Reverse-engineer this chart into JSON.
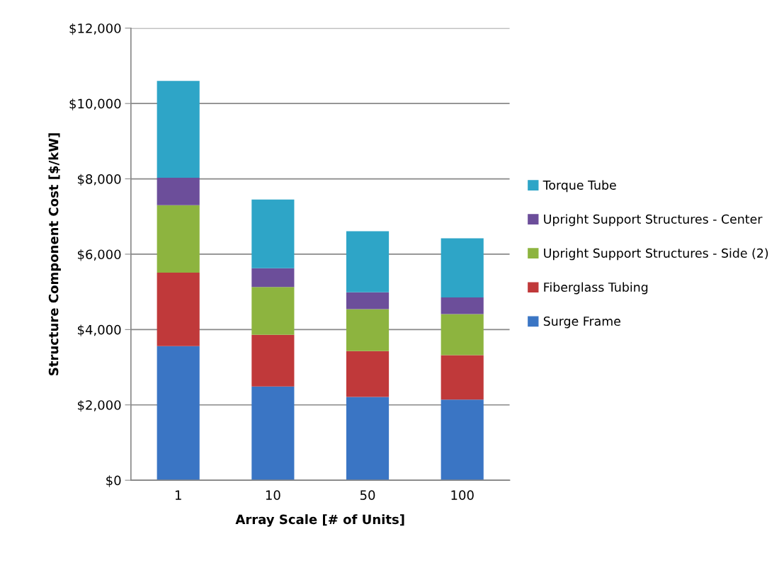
{
  "chart_data": {
    "type": "bar",
    "stacked": true,
    "xlabel": "Array Scale [# of Units]",
    "ylabel": "Structure Component Cost [$/kW]",
    "categories": [
      "1",
      "10",
      "50",
      "100"
    ],
    "series": [
      {
        "name": "Surge Frame",
        "color": "#3a75c4",
        "values": [
          3560,
          2490,
          2210,
          2140
        ]
      },
      {
        "name": "Fiberglass Tubing",
        "color": "#c0393a",
        "values": [
          1950,
          1370,
          1220,
          1180
        ]
      },
      {
        "name": "Upright Support Structures - Side (2)",
        "color": "#8db43f",
        "values": [
          1790,
          1270,
          1110,
          1090
        ]
      },
      {
        "name": "Upright Support Structures - Center",
        "color": "#6c4e9a",
        "values": [
          730,
          500,
          450,
          440
        ]
      },
      {
        "name": "Torque Tube",
        "color": "#2ea5c7",
        "values": [
          2570,
          1820,
          1620,
          1570
        ]
      }
    ],
    "ylim": [
      0,
      12000
    ],
    "yticks": [
      {
        "value": 0,
        "label": "$0"
      },
      {
        "value": 2000,
        "label": "$2,000"
      },
      {
        "value": 4000,
        "label": "$4,000"
      },
      {
        "value": 6000,
        "label": "$6,000"
      },
      {
        "value": 8000,
        "label": "$8,000"
      },
      {
        "value": 10000,
        "label": "$10,000"
      },
      {
        "value": 12000,
        "label": "$12,000"
      }
    ],
    "grid": "y",
    "legend": "right"
  }
}
